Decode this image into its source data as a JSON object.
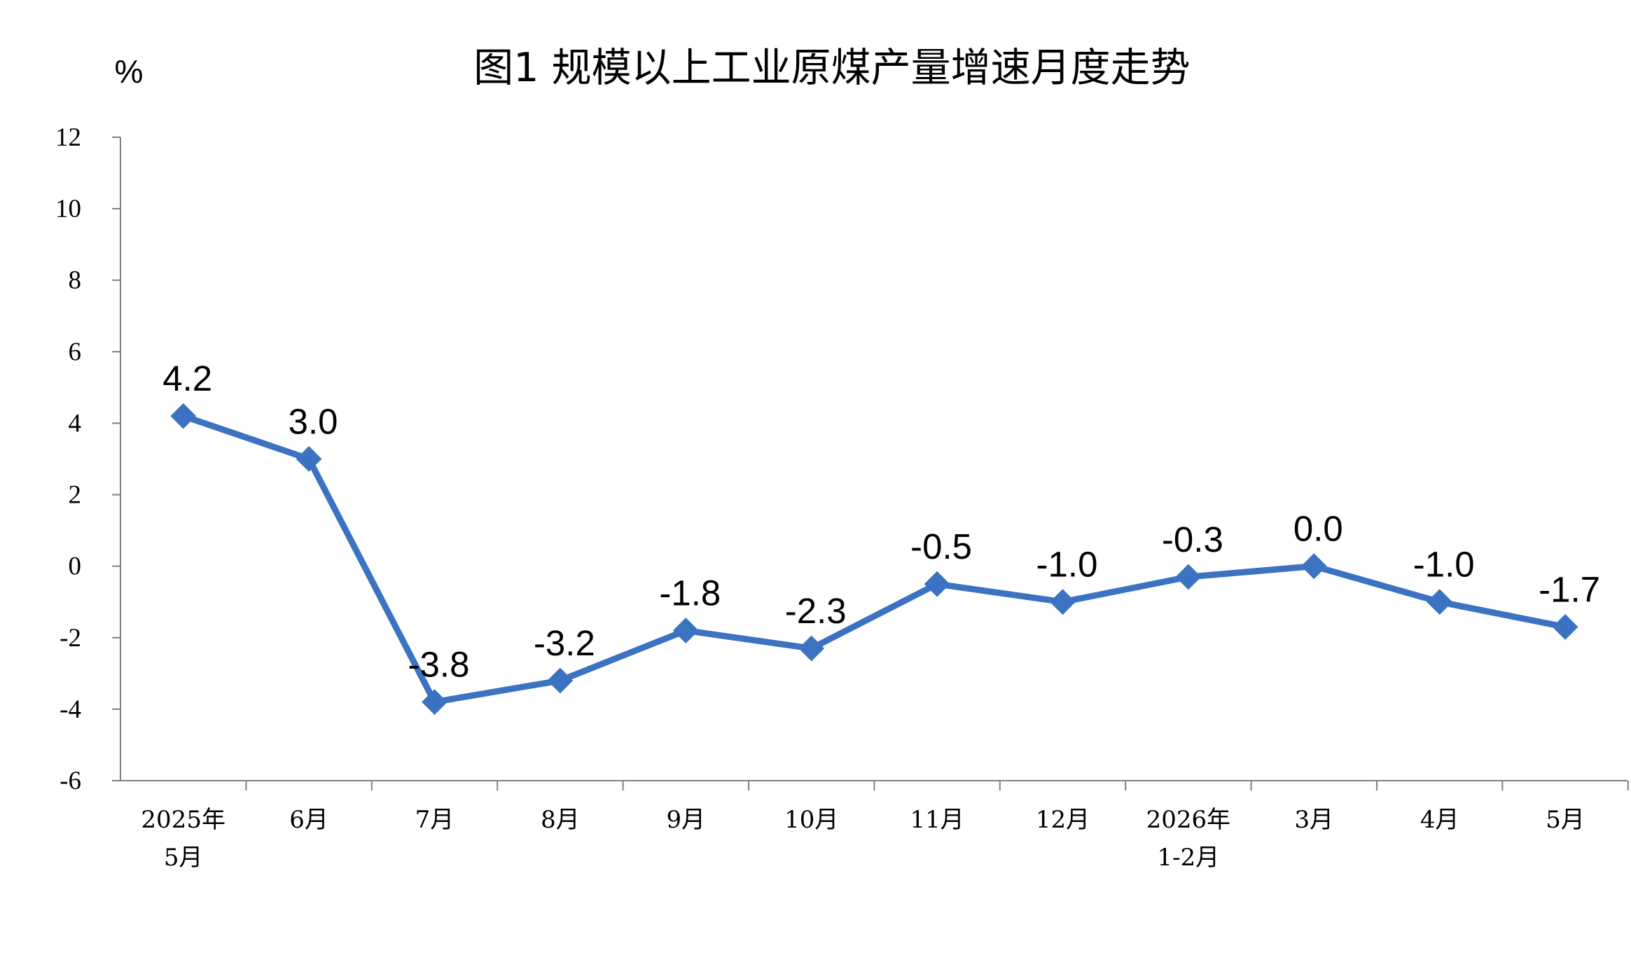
{
  "chart_data": {
    "type": "line",
    "title": "图1  规模以上工业原煤产量增速月度走势",
    "ylabel": "%",
    "xlabel": "",
    "ylim": [
      -6,
      12
    ],
    "yticks": [
      12,
      10,
      8,
      6,
      4,
      2,
      0,
      -2,
      -4,
      -6
    ],
    "grid": false,
    "legend": "none",
    "line_color": "#3B73C2",
    "categories": [
      [
        "2025年",
        "5月"
      ],
      [
        "6月"
      ],
      [
        "7月"
      ],
      [
        "8月"
      ],
      [
        "9月"
      ],
      [
        "10月"
      ],
      [
        "11月"
      ],
      [
        "12月"
      ],
      [
        "2026年",
        "1-2月"
      ],
      [
        "3月"
      ],
      [
        "4月"
      ],
      [
        "5月"
      ]
    ],
    "values": [
      4.2,
      3.0,
      -3.8,
      -3.2,
      -1.8,
      -2.3,
      -0.5,
      -1.0,
      -0.3,
      0.0,
      -1.0,
      -1.7
    ],
    "data_labels": [
      "4.2",
      "3.0",
      "-3.8",
      "-3.2",
      "-1.8",
      "-2.3",
      "-0.5",
      "-1.0",
      "-0.3",
      "0.0",
      "-1.0",
      "-1.7"
    ]
  }
}
